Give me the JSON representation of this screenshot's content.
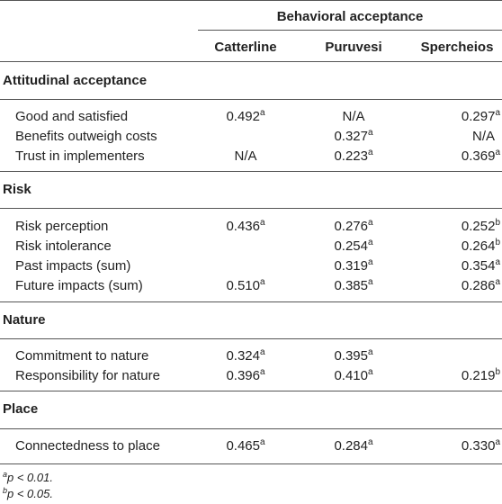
{
  "header": {
    "group": "Behavioral acceptance",
    "columns": [
      "Catterline",
      "Puruvesi",
      "Spercheios"
    ]
  },
  "sections": [
    {
      "title": "Attitudinal acceptance",
      "rows": [
        {
          "label": "Good and satisfied",
          "cells": [
            {
              "v": "0.492",
              "s": "a"
            },
            {
              "v": "N/A",
              "s": ""
            },
            {
              "v": "0.297",
              "s": "a"
            }
          ]
        },
        {
          "label": "Benefits outweigh costs",
          "cells": [
            {
              "v": "",
              "s": ""
            },
            {
              "v": "0.327",
              "s": "a"
            },
            {
              "v": "N/A",
              "s": ""
            }
          ]
        },
        {
          "label": "Trust in implementers",
          "cells": [
            {
              "v": "N/A",
              "s": ""
            },
            {
              "v": "0.223",
              "s": "a"
            },
            {
              "v": "0.369",
              "s": "a"
            }
          ]
        }
      ]
    },
    {
      "title": "Risk",
      "rows": [
        {
          "label": "Risk perception",
          "cells": [
            {
              "v": "0.436",
              "s": "a"
            },
            {
              "v": "0.276",
              "s": "a"
            },
            {
              "v": "0.252",
              "s": "b"
            }
          ]
        },
        {
          "label": "Risk intolerance",
          "cells": [
            {
              "v": "",
              "s": ""
            },
            {
              "v": "0.254",
              "s": "a"
            },
            {
              "v": "0.264",
              "s": "b"
            }
          ]
        },
        {
          "label": "Past impacts (sum)",
          "cells": [
            {
              "v": "",
              "s": ""
            },
            {
              "v": "0.319",
              "s": "a"
            },
            {
              "v": "0.354",
              "s": "a"
            }
          ]
        },
        {
          "label": "Future impacts (sum)",
          "cells": [
            {
              "v": "0.510",
              "s": "a"
            },
            {
              "v": "0.385",
              "s": "a"
            },
            {
              "v": "0.286",
              "s": "a"
            }
          ]
        }
      ]
    },
    {
      "title": "Nature",
      "rows": [
        {
          "label": "Commitment to nature",
          "cells": [
            {
              "v": "0.324",
              "s": "a"
            },
            {
              "v": "0.395",
              "s": "a"
            },
            {
              "v": "",
              "s": ""
            }
          ]
        },
        {
          "label": "Responsibility for nature",
          "cells": [
            {
              "v": "0.396",
              "s": "a"
            },
            {
              "v": "0.410",
              "s": "a"
            },
            {
              "v": "0.219",
              "s": "b"
            }
          ]
        }
      ]
    },
    {
      "title": "Place",
      "rows": [
        {
          "label": "Connectedness to place",
          "cells": [
            {
              "v": "0.465",
              "s": "a"
            },
            {
              "v": "0.284",
              "s": "a"
            },
            {
              "v": "0.330",
              "s": "a"
            }
          ]
        }
      ]
    }
  ],
  "footnotes": [
    {
      "mark": "a",
      "text": "p < 0.01."
    },
    {
      "mark": "b",
      "text": "p < 0.05."
    }
  ]
}
